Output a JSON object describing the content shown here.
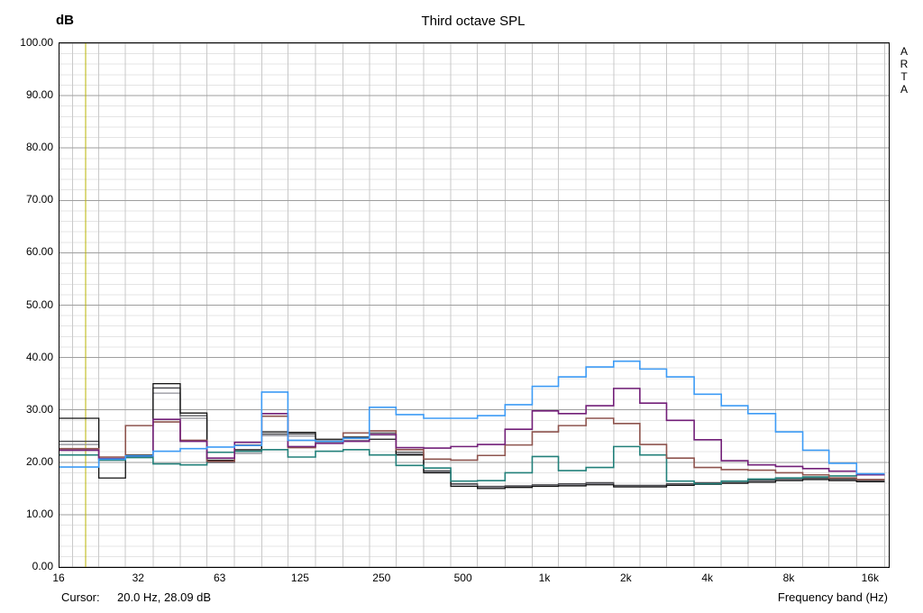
{
  "header": {
    "y_axis_unit": "dB",
    "title": "Third octave SPL",
    "watermark": [
      "A",
      "R",
      "T",
      "A"
    ]
  },
  "footer": {
    "cursor_label": "Cursor:",
    "cursor_value": "20.0 Hz, 28.09 dB",
    "x_axis_label": "Frequency band (Hz)"
  },
  "chart_data": {
    "type": "line",
    "style": "third-octave-stepped-bands",
    "title": "Third octave SPL",
    "xlabel": "Frequency band (Hz)",
    "ylabel": "dB",
    "x_scale": "log",
    "xlim": [
      16,
      18600
    ],
    "ylim": [
      0,
      100
    ],
    "y_major_step": 10,
    "y_minor_step": 2,
    "grid": {
      "minor_color": "#e4e4e4",
      "major_color": "#9e9e9e",
      "vline_color": "#c9c9c9",
      "border_color": "#000000"
    },
    "cursor": {
      "freq_hz": 20.0,
      "level_db": 28.09,
      "line_color": "#b9b300"
    },
    "y_ticks": [
      {
        "value": 100,
        "label": "100.00"
      },
      {
        "value": 90,
        "label": "90.00"
      },
      {
        "value": 80,
        "label": "80.00"
      },
      {
        "value": 70,
        "label": "70.00"
      },
      {
        "value": 60,
        "label": "60.00"
      },
      {
        "value": 50,
        "label": "50.00"
      },
      {
        "value": 40,
        "label": "40.00"
      },
      {
        "value": 30,
        "label": "30.00"
      },
      {
        "value": 20,
        "label": "20.00"
      },
      {
        "value": 10,
        "label": "10.00"
      },
      {
        "value": 0,
        "label": "0.00"
      }
    ],
    "x_ticks": [
      {
        "freq": 16,
        "label": "16"
      },
      {
        "freq": 31.5,
        "label": "32"
      },
      {
        "freq": 63,
        "label": "63"
      },
      {
        "freq": 125,
        "label": "125"
      },
      {
        "freq": 250,
        "label": "250"
      },
      {
        "freq": 500,
        "label": "500"
      },
      {
        "freq": 1000,
        "label": "1k"
      },
      {
        "freq": 2000,
        "label": "2k"
      },
      {
        "freq": 4000,
        "label": "4k"
      },
      {
        "freq": 8000,
        "label": "8k"
      },
      {
        "freq": 16000,
        "label": "16k"
      }
    ],
    "bands": [
      16,
      20,
      25,
      31.5,
      40,
      50,
      63,
      80,
      100,
      125,
      160,
      200,
      250,
      315,
      400,
      500,
      630,
      800,
      1000,
      1250,
      1600,
      2000,
      2500,
      3150,
      4000,
      5000,
      6300,
      8000,
      10000,
      12500,
      16000
    ],
    "series": [
      {
        "name": "gray",
        "color": "#8f8f97",
        "stroke_width": 1.3,
        "values": [
          23.4,
          23.4,
          20.4,
          21.2,
          33.2,
          28.4,
          19.9,
          21.7,
          25.1,
          25.0,
          23.8,
          24.2,
          25.2,
          21.6,
          18.2,
          15.7,
          15.2,
          15.3,
          15.5,
          15.7,
          15.9,
          15.4,
          15.4,
          15.7,
          16.0,
          16.2,
          16.4,
          16.7,
          16.9,
          16.7,
          16.4
        ]
      },
      {
        "name": "darkgray",
        "color": "#4c4c50",
        "stroke_width": 1.3,
        "values": [
          24.0,
          24.0,
          20.6,
          21.4,
          34.2,
          28.9,
          20.1,
          22.1,
          25.4,
          25.4,
          24.1,
          24.6,
          25.6,
          21.9,
          18.4,
          15.9,
          15.4,
          15.5,
          15.7,
          15.9,
          16.1,
          15.6,
          15.6,
          15.9,
          16.1,
          16.4,
          16.6,
          16.9,
          17.0,
          16.8,
          16.6
        ]
      },
      {
        "name": "black",
        "color": "#101010",
        "stroke_width": 1.3,
        "values": [
          28.4,
          28.4,
          17.0,
          21.0,
          35.0,
          29.4,
          20.4,
          22.4,
          25.8,
          25.7,
          24.4,
          24.8,
          24.4,
          21.4,
          18.0,
          15.4,
          15.0,
          15.2,
          15.4,
          15.5,
          15.7,
          15.3,
          15.3,
          15.6,
          15.8,
          16.0,
          16.2,
          16.5,
          16.7,
          16.5,
          16.3
        ]
      },
      {
        "name": "teal",
        "color": "#22807a",
        "stroke_width": 1.6,
        "values": [
          21.4,
          21.4,
          20.4,
          20.9,
          19.7,
          19.5,
          21.9,
          22.1,
          22.4,
          21.0,
          22.1,
          22.4,
          21.4,
          19.4,
          18.9,
          16.4,
          16.5,
          18.0,
          21.1,
          18.4,
          19.0,
          23.0,
          21.4,
          16.4,
          15.9,
          16.4,
          16.8,
          17.0,
          17.2,
          17.4,
          17.6
        ]
      },
      {
        "name": "brown",
        "color": "#8e544e",
        "stroke_width": 1.6,
        "values": [
          22.6,
          22.6,
          21.0,
          27.0,
          27.7,
          24.2,
          20.2,
          23.3,
          28.8,
          22.8,
          24.0,
          25.6,
          26.0,
          22.4,
          20.6,
          20.4,
          21.3,
          23.3,
          25.8,
          27.0,
          28.4,
          27.4,
          23.4,
          20.8,
          19.0,
          18.6,
          18.5,
          18.0,
          17.6,
          17.0,
          16.7
        ]
      },
      {
        "name": "purple",
        "color": "#721f78",
        "stroke_width": 1.6,
        "values": [
          22.3,
          22.3,
          20.7,
          21.2,
          28.2,
          24.0,
          20.8,
          23.8,
          29.3,
          23.0,
          23.6,
          24.0,
          25.3,
          22.8,
          22.7,
          23.0,
          23.4,
          26.3,
          29.8,
          29.3,
          30.8,
          34.1,
          31.3,
          28.0,
          24.3,
          20.3,
          19.5,
          19.2,
          18.8,
          18.3,
          17.6
        ]
      },
      {
        "name": "blue",
        "color": "#3d9bf5",
        "stroke_width": 1.6,
        "values": [
          19.1,
          19.1,
          20.6,
          21.2,
          22.1,
          22.6,
          22.9,
          23.2,
          33.4,
          24.2,
          24.0,
          24.6,
          30.5,
          29.1,
          28.4,
          28.4,
          28.9,
          31.0,
          34.5,
          36.3,
          38.2,
          39.3,
          37.8,
          36.3,
          33.0,
          30.8,
          29.3,
          25.8,
          22.3,
          19.8,
          17.8
        ]
      }
    ]
  }
}
